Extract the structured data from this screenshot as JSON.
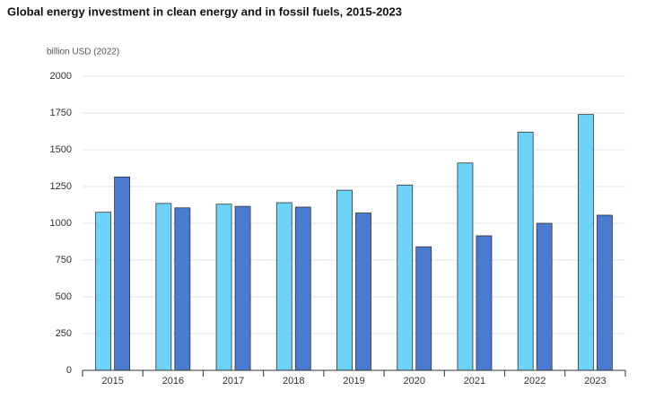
{
  "chart_data": {
    "type": "bar",
    "title": "Global energy investment in clean energy and in fossil fuels, 2015-2023",
    "ylabel": "billion USD (2022)",
    "categories": [
      "2015",
      "2016",
      "2017",
      "2018",
      "2019",
      "2020",
      "2021",
      "2022",
      "2023"
    ],
    "series": [
      {
        "color": "#6dd3f8",
        "values": [
          1075,
          1135,
          1130,
          1140,
          1225,
          1260,
          1410,
          1620,
          1740
        ]
      },
      {
        "color": "#4a7bd0",
        "values": [
          1315,
          1105,
          1115,
          1110,
          1070,
          840,
          915,
          1000,
          1055
        ]
      }
    ],
    "ylim": [
      0,
      2000
    ],
    "yticks": [
      0,
      250,
      500,
      750,
      1000,
      1250,
      1500,
      1750,
      2000
    ],
    "grid": true
  }
}
